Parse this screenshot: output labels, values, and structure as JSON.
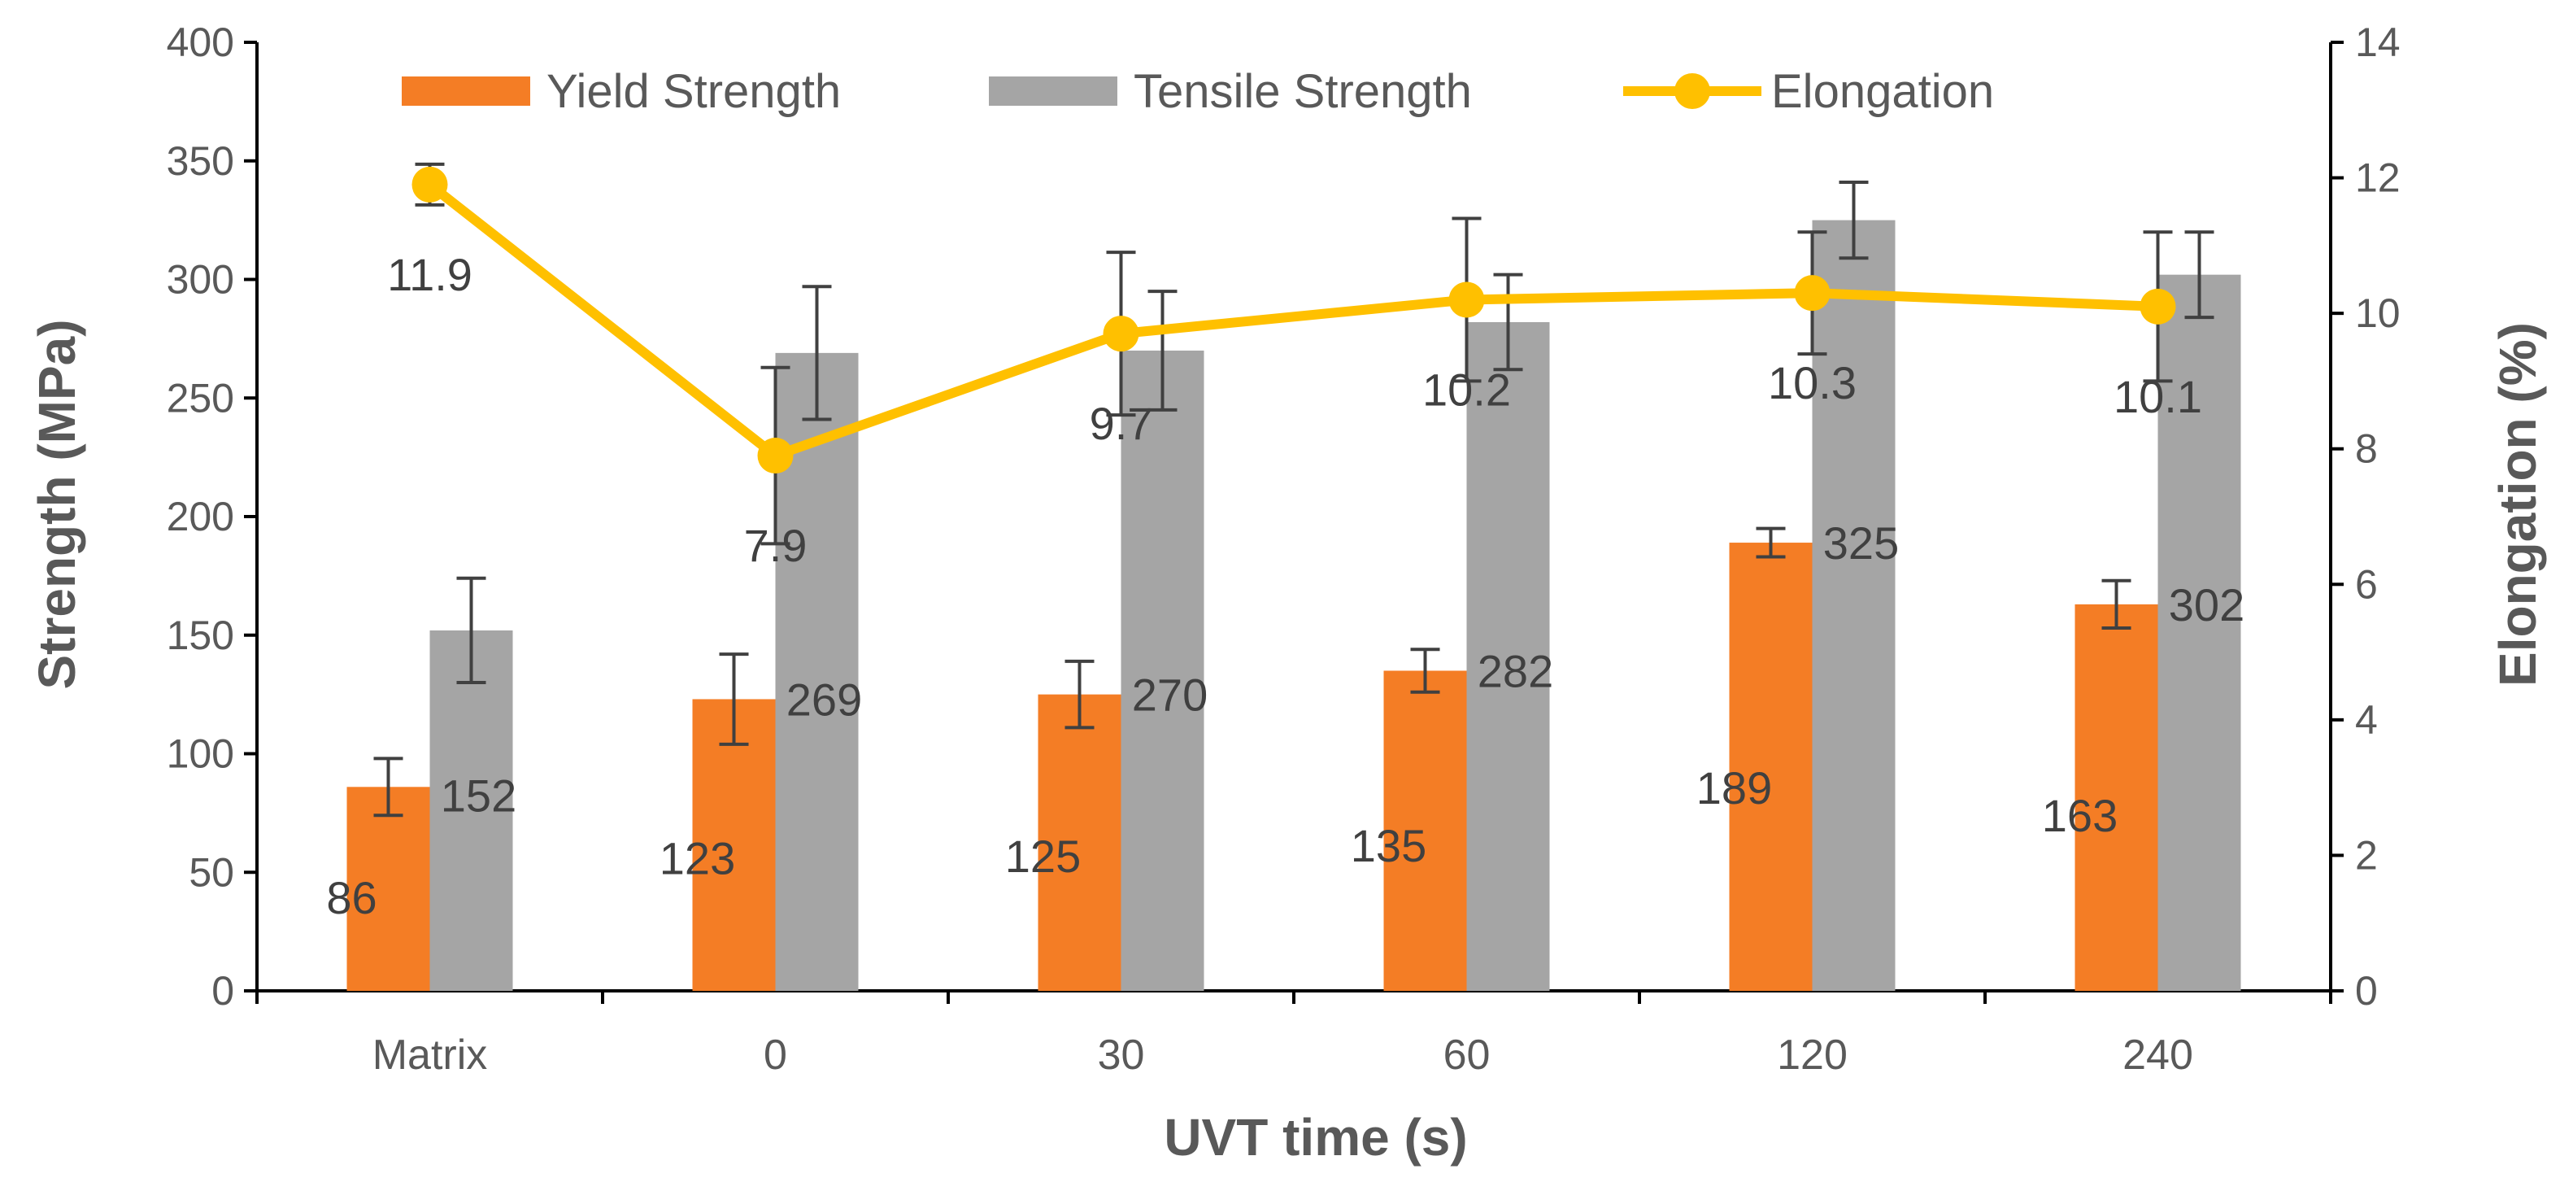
{
  "chart_data": {
    "type": "bar",
    "title": "",
    "xlabel": "UVT time (s)",
    "ylabel": "Strength (MPa)",
    "y2label": "Elongation (%)",
    "categories": [
      "Matrix",
      "0",
      "30",
      "60",
      "120",
      "240"
    ],
    "ylim": [
      0,
      400
    ],
    "yticks": [
      0,
      50,
      100,
      150,
      200,
      250,
      300,
      350,
      400
    ],
    "y2lim": [
      0,
      14
    ],
    "y2ticks": [
      0,
      2,
      4,
      6,
      8,
      10,
      12,
      14
    ],
    "grid": false,
    "legend_position": "top",
    "series": [
      {
        "name": "Yield Strength",
        "kind": "bar",
        "axis": "left",
        "color": "#F47D25",
        "values": [
          86,
          123,
          125,
          135,
          189,
          163
        ],
        "errors": [
          12,
          19,
          14,
          9,
          6,
          10
        ],
        "labels": [
          "86",
          "123",
          "125",
          "135",
          "189",
          "163"
        ]
      },
      {
        "name": "Tensile Strength",
        "kind": "bar",
        "axis": "left",
        "color": "#A5A5A5",
        "values": [
          152,
          269,
          270,
          282,
          325,
          302
        ],
        "errors": [
          22,
          28,
          25,
          20,
          16,
          18
        ],
        "labels": [
          "152",
          "269",
          "270",
          "282",
          "325",
          "302"
        ]
      },
      {
        "name": "Elongation",
        "kind": "line",
        "axis": "right",
        "color": "#FFC000",
        "values": [
          11.9,
          7.9,
          9.7,
          10.2,
          10.3,
          10.1
        ],
        "errors": [
          0.3,
          1.3,
          1.2,
          1.2,
          0.9,
          1.1
        ],
        "labels": [
          "11.9",
          "7.9",
          "9.7",
          "10.2",
          "10.3",
          "10.1"
        ]
      }
    ]
  }
}
